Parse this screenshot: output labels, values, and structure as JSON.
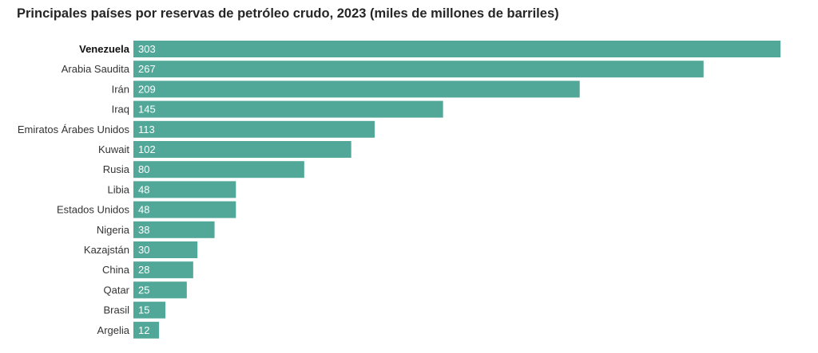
{
  "chart_data": {
    "type": "bar",
    "orientation": "horizontal",
    "title": "Principales países por reservas de petróleo crudo, 2023 (miles de millones de barriles)",
    "categories": [
      "Venezuela",
      "Arabia Saudita",
      "Irán",
      "Iraq",
      "Emiratos Árabes Unidos",
      "Kuwait",
      "Rusia",
      "Libia",
      "Estados Unidos",
      "Nigeria",
      "Kazajstán",
      "China",
      "Qatar",
      "Brasil",
      "Argelia"
    ],
    "values": [
      303,
      267,
      209,
      145,
      113,
      102,
      80,
      48,
      48,
      38,
      30,
      28,
      25,
      15,
      12
    ],
    "value_labels": [
      "303",
      "267",
      "209",
      "145",
      "113",
      "102",
      "80",
      "48",
      "48",
      "38",
      "30",
      "28",
      "25",
      "15",
      "12"
    ],
    "highlighted_category": "Venezuela",
    "bar_color": "#52a898",
    "xlim": [
      0,
      303
    ],
    "grid": false
  }
}
